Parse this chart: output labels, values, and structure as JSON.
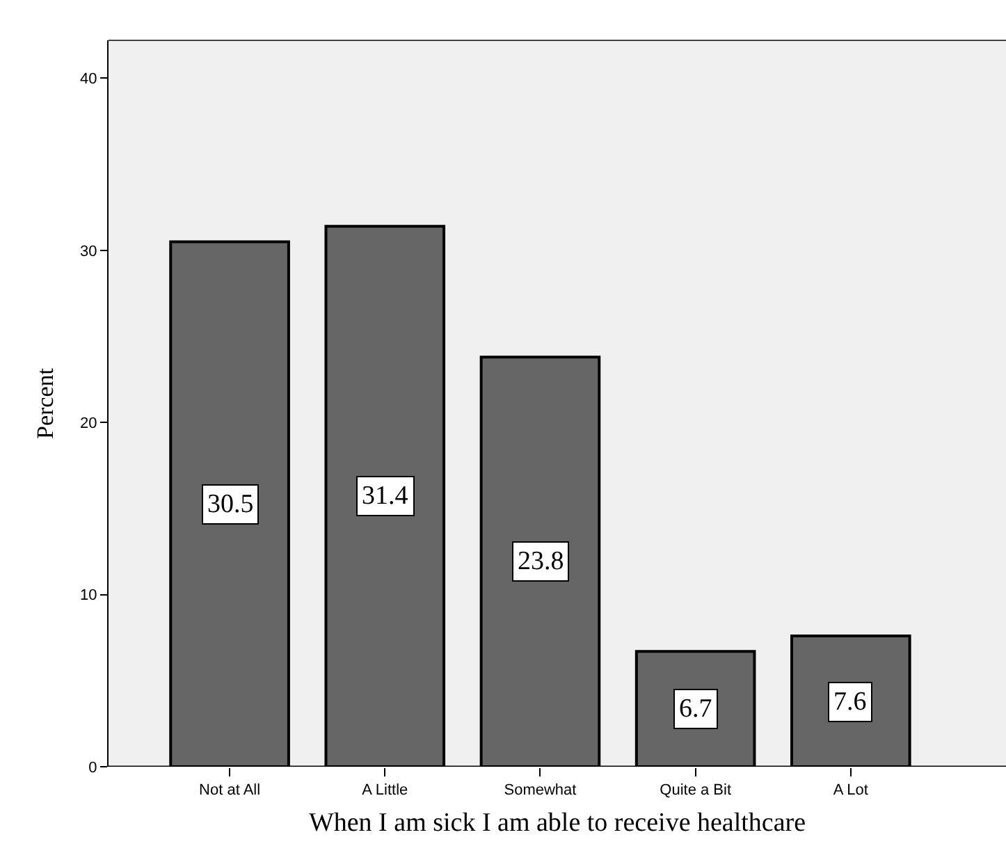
{
  "chart_data": {
    "type": "bar",
    "xlabel": "When I am sick I am able to receive healthcare",
    "ylabel": "Percent",
    "categories": [
      "Not at All",
      "A Little",
      "Somewhat",
      "Quite a Bit",
      "A Lot"
    ],
    "values": [
      30.5,
      31.4,
      23.8,
      6.7,
      7.6
    ],
    "color": "#666666",
    "ylim": [
      0,
      42.2
    ],
    "yticks": [
      0,
      10,
      20,
      30,
      40
    ],
    "grid": false,
    "data_labels": true
  }
}
